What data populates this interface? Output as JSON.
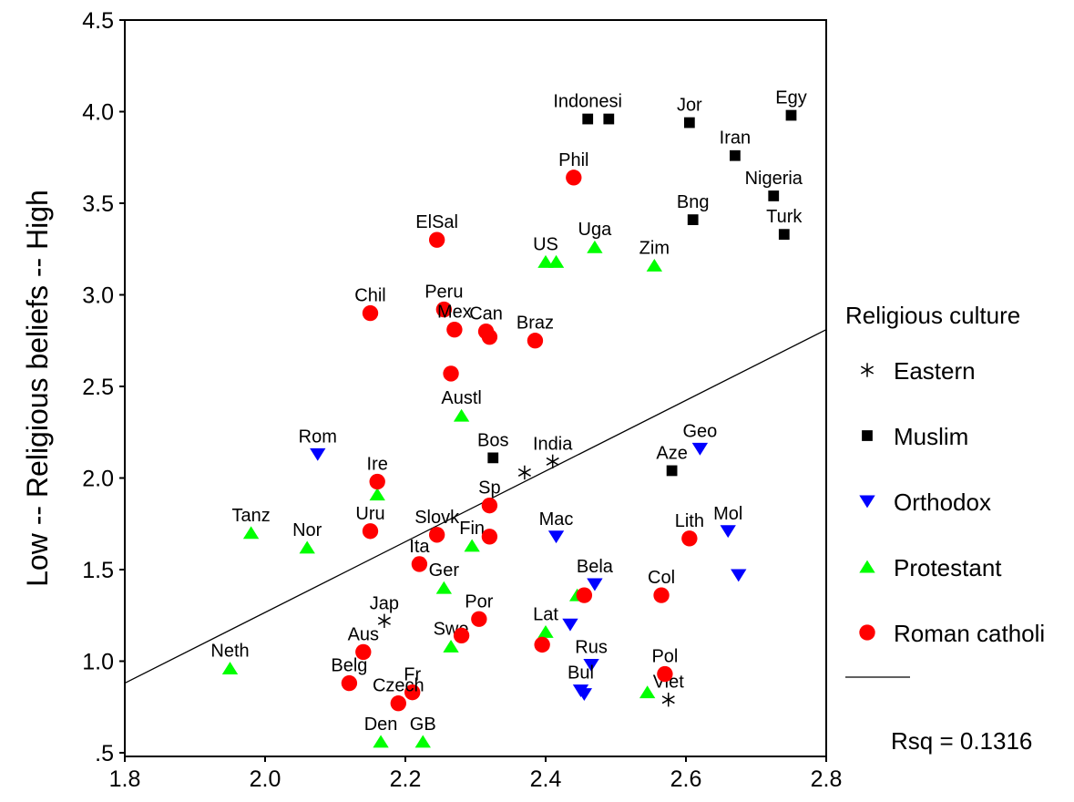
{
  "chart_data": {
    "type": "scatter",
    "ylabel": "Low  -- Religious beliefs -- High",
    "xlim": [
      1.8,
      2.8
    ],
    "ylim": [
      0.48,
      4.5
    ],
    "x_ticks": [
      {
        "value": 1.8,
        "label": "1.8"
      },
      {
        "value": 2.0,
        "label": "2.0"
      },
      {
        "value": 2.2,
        "label": "2.2"
      },
      {
        "value": 2.4,
        "label": "2.4"
      },
      {
        "value": 2.6,
        "label": "2.6"
      },
      {
        "value": 2.8,
        "label": "2.8"
      }
    ],
    "y_ticks": [
      {
        "value": 0.5,
        "label": ".5"
      },
      {
        "value": 1.0,
        "label": "1.0"
      },
      {
        "value": 1.5,
        "label": "1.5"
      },
      {
        "value": 2.0,
        "label": "2.0"
      },
      {
        "value": 2.5,
        "label": "2.5"
      },
      {
        "value": 3.0,
        "label": "3.0"
      },
      {
        "value": 3.5,
        "label": "3.5"
      },
      {
        "value": 4.0,
        "label": "4.0"
      },
      {
        "value": 4.5,
        "label": "4.5"
      }
    ],
    "legend": {
      "title": "Religious culture",
      "position": "right",
      "entries": [
        {
          "key": "Eastern",
          "label": "Eastern",
          "marker": "asterisk",
          "color": "#000000"
        },
        {
          "key": "Muslim",
          "label": "Muslim",
          "marker": "square",
          "color": "#000000"
        },
        {
          "key": "Orthodox",
          "label": "Orthodox",
          "marker": "triangle-down",
          "color": "#0000ff"
        },
        {
          "key": "Protestant",
          "label": "Protestant",
          "marker": "triangle-up",
          "color": "#00ff00"
        },
        {
          "key": "Catholic",
          "label": "Roman catholi",
          "marker": "circle",
          "color": "#ff0000"
        }
      ]
    },
    "fit_line": {
      "x": [
        1.8,
        2.8
      ],
      "y": [
        0.88,
        2.81
      ]
    },
    "rsq_label": "Rsq = 0.1316",
    "series": [
      {
        "group": "Eastern",
        "points": [
          {
            "label": "India",
            "x": 2.41,
            "y": 2.09
          },
          {
            "label": "",
            "x": 2.37,
            "y": 2.03
          },
          {
            "label": "Jap",
            "x": 2.17,
            "y": 1.22
          },
          {
            "label": "Viet",
            "x": 2.575,
            "y": 0.79
          }
        ]
      },
      {
        "group": "Muslim",
        "points": [
          {
            "label": "Indonesi",
            "x": 2.46,
            "y": 3.96
          },
          {
            "label": "",
            "x": 2.49,
            "y": 3.96
          },
          {
            "label": "Jor",
            "x": 2.605,
            "y": 3.94
          },
          {
            "label": "Egy",
            "x": 2.75,
            "y": 3.98
          },
          {
            "label": "Iran",
            "x": 2.67,
            "y": 3.76
          },
          {
            "label": "Nigeria",
            "x": 2.725,
            "y": 3.54
          },
          {
            "label": "Bng",
            "x": 2.61,
            "y": 3.41
          },
          {
            "label": "Turk",
            "x": 2.74,
            "y": 3.33
          },
          {
            "label": "Bos",
            "x": 2.325,
            "y": 2.11
          },
          {
            "label": "Aze",
            "x": 2.58,
            "y": 2.04
          }
        ]
      },
      {
        "group": "Orthodox",
        "points": [
          {
            "label": "Rom",
            "x": 2.075,
            "y": 2.13
          },
          {
            "label": "Geo",
            "x": 2.62,
            "y": 2.16
          },
          {
            "label": "Mol",
            "x": 2.66,
            "y": 1.71
          },
          {
            "label": "",
            "x": 2.675,
            "y": 1.47
          },
          {
            "label": "Mac",
            "x": 2.415,
            "y": 1.68
          },
          {
            "label": "Bela",
            "x": 2.47,
            "y": 1.42
          },
          {
            "label": "",
            "x": 2.435,
            "y": 1.2
          },
          {
            "label": "Rus",
            "x": 2.465,
            "y": 0.98
          },
          {
            "label": "Bul",
            "x": 2.45,
            "y": 0.84
          },
          {
            "label": "",
            "x": 2.455,
            "y": 0.82
          }
        ]
      },
      {
        "group": "Protestant",
        "points": [
          {
            "label": "US",
            "x": 2.4,
            "y": 3.18
          },
          {
            "label": "",
            "x": 2.415,
            "y": 3.18
          },
          {
            "label": "Uga",
            "x": 2.47,
            "y": 3.26
          },
          {
            "label": "Zim",
            "x": 2.555,
            "y": 3.16
          },
          {
            "label": "Austl",
            "x": 2.28,
            "y": 2.34
          },
          {
            "label": "",
            "x": 2.16,
            "y": 1.91
          },
          {
            "label": "Tanz",
            "x": 1.98,
            "y": 1.7
          },
          {
            "label": "Nor",
            "x": 2.06,
            "y": 1.62
          },
          {
            "label": "Fin",
            "x": 2.295,
            "y": 1.63
          },
          {
            "label": "Ger",
            "x": 2.255,
            "y": 1.4
          },
          {
            "label": "",
            "x": 2.445,
            "y": 1.36
          },
          {
            "label": "Lat",
            "x": 2.4,
            "y": 1.16
          },
          {
            "label": "Swe",
            "x": 2.265,
            "y": 1.08
          },
          {
            "label": "Neth",
            "x": 1.95,
            "y": 0.96
          },
          {
            "label": "",
            "x": 2.545,
            "y": 0.83
          },
          {
            "label": "Den",
            "x": 2.165,
            "y": 0.56
          },
          {
            "label": "GB",
            "x": 2.225,
            "y": 0.56
          }
        ]
      },
      {
        "group": "Catholic",
        "points": [
          {
            "label": "Phil",
            "x": 2.44,
            "y": 3.64
          },
          {
            "label": "ElSal",
            "x": 2.245,
            "y": 3.3
          },
          {
            "label": "Chil",
            "x": 2.15,
            "y": 2.9
          },
          {
            "label": "Peru",
            "x": 2.255,
            "y": 2.92
          },
          {
            "label": "Mex",
            "x": 2.27,
            "y": 2.81
          },
          {
            "label": "Can",
            "x": 2.315,
            "y": 2.8
          },
          {
            "label": "",
            "x": 2.32,
            "y": 2.77
          },
          {
            "label": "Braz",
            "x": 2.385,
            "y": 2.75
          },
          {
            "label": "",
            "x": 2.265,
            "y": 2.57
          },
          {
            "label": "Ire",
            "x": 2.16,
            "y": 1.98
          },
          {
            "label": "Uru",
            "x": 2.15,
            "y": 1.71
          },
          {
            "label": "Slovk",
            "x": 2.245,
            "y": 1.69
          },
          {
            "label": "Sp",
            "x": 2.32,
            "y": 1.85
          },
          {
            "label": "",
            "x": 2.32,
            "y": 1.68
          },
          {
            "label": "Ita",
            "x": 2.22,
            "y": 1.53
          },
          {
            "label": "Lith",
            "x": 2.605,
            "y": 1.67
          },
          {
            "label": "",
            "x": 2.455,
            "y": 1.36
          },
          {
            "label": "Col",
            "x": 2.565,
            "y": 1.36
          },
          {
            "label": "Por",
            "x": 2.305,
            "y": 1.23
          },
          {
            "label": "",
            "x": 2.28,
            "y": 1.14
          },
          {
            "label": "",
            "x": 2.395,
            "y": 1.09
          },
          {
            "label": "Aus",
            "x": 2.14,
            "y": 1.05
          },
          {
            "label": "Belg",
            "x": 2.12,
            "y": 0.88
          },
          {
            "label": "Pol",
            "x": 2.57,
            "y": 0.93
          },
          {
            "label": "Fr",
            "x": 2.21,
            "y": 0.83
          },
          {
            "label": "Czech",
            "x": 2.19,
            "y": 0.77
          }
        ]
      }
    ]
  }
}
